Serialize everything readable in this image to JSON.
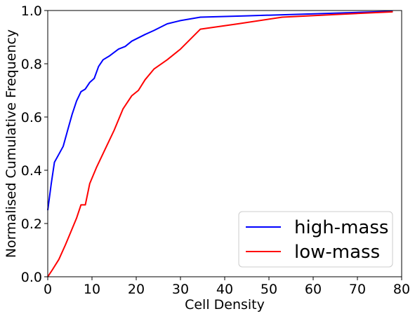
{
  "chart_data": {
    "type": "line",
    "xlabel": "Cell Density",
    "ylabel": "Normalised Cumulative Frequency",
    "xlim": [
      0,
      80
    ],
    "ylim": [
      0,
      1
    ],
    "xticks": [
      "0",
      "10",
      "20",
      "30",
      "40",
      "50",
      "60",
      "70",
      "80"
    ],
    "yticks": [
      "0.0",
      "0.2",
      "0.4",
      "0.6",
      "0.8",
      "1.0"
    ],
    "grid": false,
    "legend_position": "bottom-right",
    "series": [
      {
        "name": "high-mass",
        "color": "#0000ff",
        "points": [
          [
            0,
            0.25
          ],
          [
            0.8,
            0.35
          ],
          [
            1.5,
            0.43
          ],
          [
            2.5,
            0.46
          ],
          [
            3.5,
            0.49
          ],
          [
            4.5,
            0.55
          ],
          [
            5.5,
            0.61
          ],
          [
            6.5,
            0.66
          ],
          [
            7.5,
            0.695
          ],
          [
            8.5,
            0.705
          ],
          [
            9.5,
            0.73
          ],
          [
            10.5,
            0.745
          ],
          [
            11.5,
            0.79
          ],
          [
            12.5,
            0.815
          ],
          [
            14,
            0.83
          ],
          [
            16,
            0.855
          ],
          [
            17.5,
            0.865
          ],
          [
            19,
            0.885
          ],
          [
            22,
            0.91
          ],
          [
            24,
            0.925
          ],
          [
            27,
            0.95
          ],
          [
            30,
            0.962
          ],
          [
            34.5,
            0.975
          ],
          [
            45,
            0.98
          ],
          [
            55,
            0.985
          ],
          [
            65,
            0.99
          ],
          [
            78,
            0.997
          ]
        ]
      },
      {
        "name": "low-mass",
        "color": "#ff0000",
        "points": [
          [
            0,
            0.0
          ],
          [
            1,
            0.025
          ],
          [
            2.5,
            0.065
          ],
          [
            4,
            0.12
          ],
          [
            5,
            0.16
          ],
          [
            6.5,
            0.22
          ],
          [
            7.5,
            0.27
          ],
          [
            8.5,
            0.27
          ],
          [
            9.5,
            0.35
          ],
          [
            11,
            0.41
          ],
          [
            13,
            0.48
          ],
          [
            15,
            0.55
          ],
          [
            17,
            0.63
          ],
          [
            19,
            0.68
          ],
          [
            20.5,
            0.7
          ],
          [
            22,
            0.74
          ],
          [
            24,
            0.78
          ],
          [
            27,
            0.815
          ],
          [
            30,
            0.855
          ],
          [
            34.5,
            0.93
          ],
          [
            43,
            0.95
          ],
          [
            53,
            0.975
          ],
          [
            65,
            0.985
          ],
          [
            78,
            0.995
          ]
        ]
      }
    ]
  }
}
